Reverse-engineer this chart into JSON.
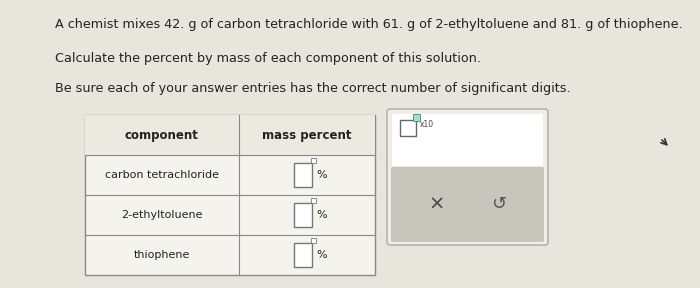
{
  "bg_color": "#e8e5dc",
  "title_lines": [
    "A chemist mixes 42. g of carbon tetrachloride with 61. g of 2-ethyltoluene and 81. g of thiophene.",
    "Calculate the percent by mass of each component of this solution.",
    "Be sure each of your answer entries has the correct number of significant digits."
  ],
  "table_headers": [
    "component",
    "mass percent"
  ],
  "table_rows": [
    "carbon tetrachloride",
    "2-ethyltoluene",
    "thiophene"
  ],
  "text_color": "#222222",
  "line_color": "#888888",
  "table_bg": "#f5f3ee",
  "header_bg": "#ece9e0",
  "input_box_color": "#ffffff",
  "panel_bg": "#f0ede4",
  "panel_bottom_bg": "#c8c5bc",
  "panel_border": "#aaaaaa"
}
